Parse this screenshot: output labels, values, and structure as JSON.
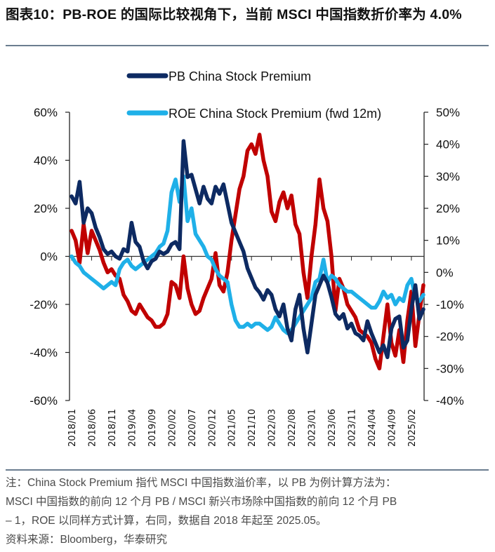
{
  "title": "图表10：PB-ROE 的国际比较视角下，当前 MSCI 中国指数折价率为 4.0%",
  "notes": {
    "line1": "注：China Stock Premium 指代 MSCI 中国指数溢价率，以 PB 为例计算方法为：",
    "line2": "MSCI 中国指数的前向 12 个月 PB / MSCI 新兴市场除中国指数的前向 12 个月 PB",
    "line3": "– 1，ROE 以同样方式计算，右同，数据自 2018 年起至 2025.05。",
    "source": "资料来源：Bloomberg，华泰研究"
  },
  "chart_data": {
    "type": "line",
    "title": "",
    "xlabel": "",
    "ylabel_left": "",
    "ylabel_right": "",
    "x_start": "2018/01",
    "x_end": "2025/05",
    "x_tick_labels": [
      "2018/01",
      "2018/06",
      "2018/11",
      "2019/04",
      "2019/09",
      "2020/02",
      "2020/07",
      "2020/12",
      "2021/05",
      "2021/10",
      "2022/03",
      "2022/08",
      "2023/01",
      "2023/06",
      "2023/11",
      "2024/04",
      "2024/09",
      "2025/02"
    ],
    "y_left": {
      "min": -60,
      "max": 60,
      "step": 20,
      "ticks": [
        "60%",
        "40%",
        "20%",
        "0%",
        "-20%",
        "-40%",
        "-60%"
      ]
    },
    "y_right": {
      "min": -40,
      "max": 50,
      "step": 10,
      "ticks": [
        "50%",
        "40%",
        "30%",
        "20%",
        "10%",
        "0%",
        "-10%",
        "-20%",
        "-30%",
        "-40%"
      ]
    },
    "legend_position": "top-center",
    "colors": {
      "pb": "#0d2a62",
      "roe": "#1fb0e8",
      "unlabeled": "#c00000"
    },
    "series": [
      {
        "name": "PB China Stock Premium",
        "legend": true,
        "axis": "left",
        "color": "#0d2a62",
        "values": [
          25,
          22,
          31,
          14,
          20,
          18,
          12,
          8,
          3,
          1,
          2,
          0,
          -1,
          3,
          2,
          14,
          6,
          4,
          -2,
          -5,
          -2,
          -1,
          2,
          1,
          2,
          5,
          6,
          3,
          48,
          33,
          34,
          28,
          22,
          29,
          24,
          22,
          29,
          26,
          30,
          22,
          14,
          10,
          6,
          2,
          -5,
          -9,
          -13,
          -15,
          -18,
          -14,
          -16,
          -22,
          -25,
          -20,
          -30,
          -35,
          -22,
          -16,
          -30,
          -40,
          -28,
          -16,
          -12,
          -8,
          -11,
          -17,
          -24,
          -26,
          -24,
          -30,
          -28,
          -32,
          -33,
          -35,
          -27,
          -32,
          -36,
          -40,
          -37,
          -42,
          -30,
          -26,
          -25,
          -38,
          -35,
          -22,
          -12,
          -26,
          -22
        ],
        "note": "monthly estimates read from chart, 2018/01–2025/05"
      },
      {
        "name": "ROE China Stock Premium (fwd 12m)",
        "legend": true,
        "axis": "right",
        "color": "#1fb0e8",
        "values": [
          5,
          3,
          2,
          0,
          -1,
          -2,
          -3,
          -4,
          -5,
          -4,
          -3,
          -4,
          1,
          3,
          4,
          2,
          1,
          2,
          3,
          4,
          5,
          6,
          8,
          9,
          13,
          25,
          29,
          22,
          30,
          16,
          20,
          12,
          10,
          8,
          5,
          4,
          1,
          -1,
          -2,
          -3,
          -10,
          -15,
          -17,
          -17,
          -16,
          -17,
          -16,
          -16,
          -17,
          -18,
          -17,
          -14,
          -16,
          -18,
          -19,
          -18,
          -16,
          -14,
          -12,
          -10,
          -8,
          -3,
          -2,
          4,
          -3,
          -1,
          -2,
          -4,
          -5,
          -6,
          -6,
          -7,
          -8,
          -9,
          -10,
          -11,
          -11,
          -9,
          -6,
          -8,
          -7,
          -10,
          -8,
          -9,
          -4,
          -2,
          -8,
          -9,
          -7
        ],
        "note": "monthly estimates read from chart, 2018/01–2025/05"
      },
      {
        "name": "",
        "legend": false,
        "axis": "right",
        "color": "#c00000",
        "values": [
          13,
          10,
          3,
          15,
          6,
          13,
          10,
          7,
          3,
          0,
          1,
          -1,
          -2,
          -7,
          -9,
          -12,
          -13,
          -10,
          -12,
          -14,
          -15,
          -17,
          -17,
          -16,
          -13,
          -3,
          -4,
          -8,
          5,
          -5,
          -10,
          -13,
          -12,
          -8,
          -5,
          -2,
          6,
          -4,
          -6,
          0,
          10,
          18,
          26,
          30,
          38,
          40,
          37,
          43,
          35,
          30,
          19,
          16,
          22,
          25,
          20,
          24,
          15,
          12,
          0,
          -8,
          5,
          15,
          29,
          20,
          16,
          5,
          -12,
          -2,
          -5,
          -10,
          -12,
          -14,
          -18,
          -19,
          -20,
          -22,
          -27,
          -30,
          -20,
          -10,
          -22,
          -26,
          -18,
          -28,
          -15,
          -6,
          -23,
          -13,
          -4
        ],
        "note": "series drawn in chart without legend entry; monthly estimates, latest ≈ -4.0%"
      }
    ]
  }
}
